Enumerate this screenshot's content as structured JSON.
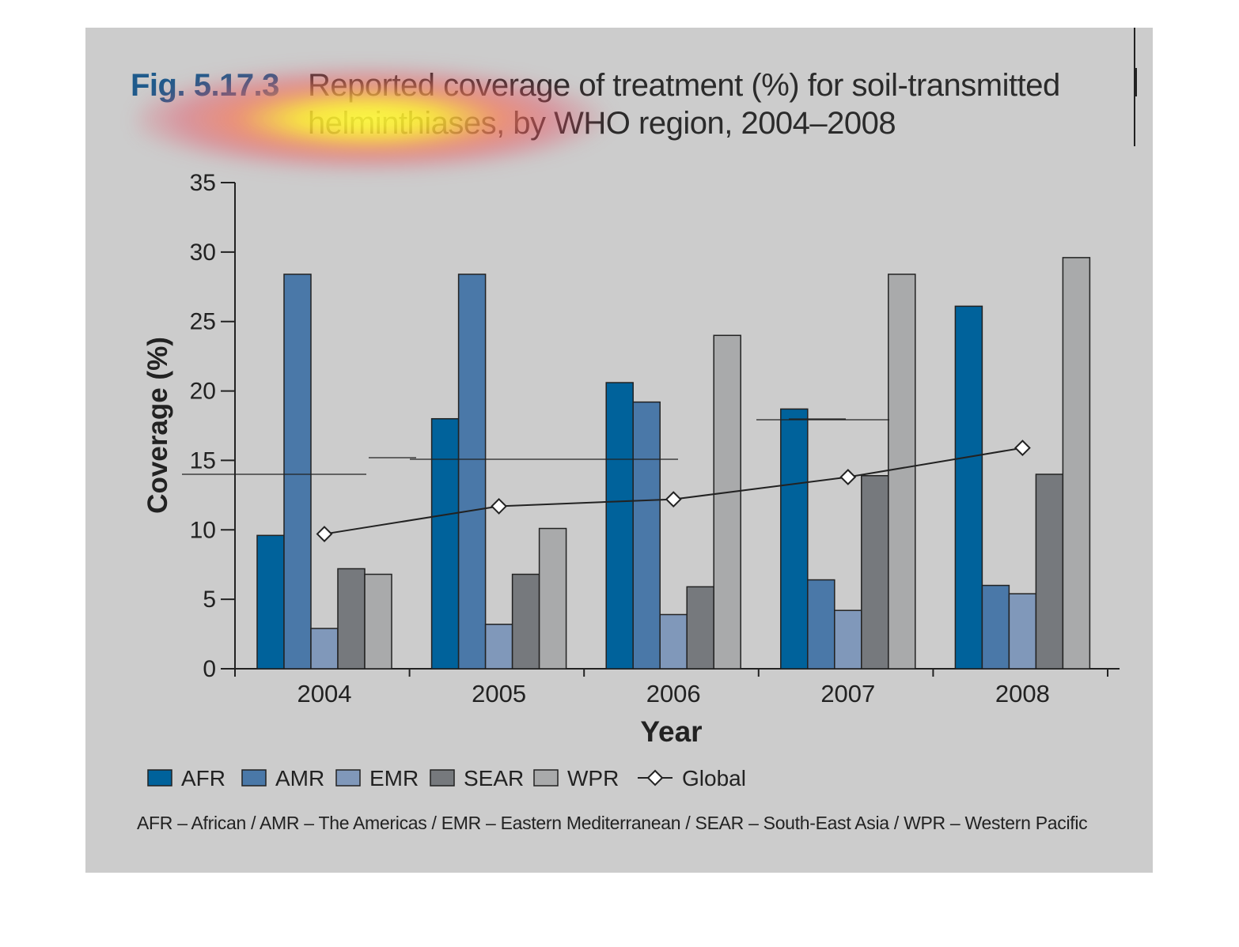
{
  "figure": {
    "label": "Fig. 5.17.3",
    "title": "Reported coverage of treatment (%) for soil-transmitted helminthiases, by WHO region, 2004–2008",
    "notes": "AFR – African / AMR – The Americas / EMR – Eastern Mediterranean / SEAR – South-East Asia / WPR – Western Pacific"
  },
  "chart_data": {
    "type": "bar",
    "title": "Reported coverage of treatment (%) for soil-transmitted helminthiases, by WHO region, 2004–2008",
    "xlabel": "Year",
    "ylabel": "Coverage (%)",
    "ylim": [
      0,
      35
    ],
    "yticks": [
      "0",
      "5",
      "10",
      "15",
      "20",
      "25",
      "30",
      "35"
    ],
    "categories": [
      "2004",
      "2005",
      "2006",
      "2007",
      "2008"
    ],
    "grid": false,
    "legend_position": "bottom",
    "series": [
      {
        "name": "AFR",
        "type": "bar",
        "color": "#00629b",
        "values": [
          9.6,
          18.0,
          20.6,
          18.7,
          26.1
        ]
      },
      {
        "name": "AMR",
        "type": "bar",
        "color": "#4a78a8",
        "values": [
          28.4,
          28.4,
          19.2,
          6.4,
          6.0
        ]
      },
      {
        "name": "EMR",
        "type": "bar",
        "color": "#8098ba",
        "values": [
          2.9,
          3.2,
          3.9,
          4.2,
          5.4
        ]
      },
      {
        "name": "SEAR",
        "type": "bar",
        "color": "#76797d",
        "values": [
          7.2,
          6.8,
          5.9,
          13.9,
          14.0
        ]
      },
      {
        "name": "WPR",
        "type": "bar",
        "color": "#a9aaab",
        "values": [
          6.8,
          10.1,
          24.0,
          28.4,
          29.6
        ]
      },
      {
        "name": "Global",
        "type": "line",
        "marker": "diamond",
        "color": "#222222",
        "values": [
          9.7,
          11.7,
          12.2,
          13.8,
          15.9
        ]
      }
    ]
  }
}
